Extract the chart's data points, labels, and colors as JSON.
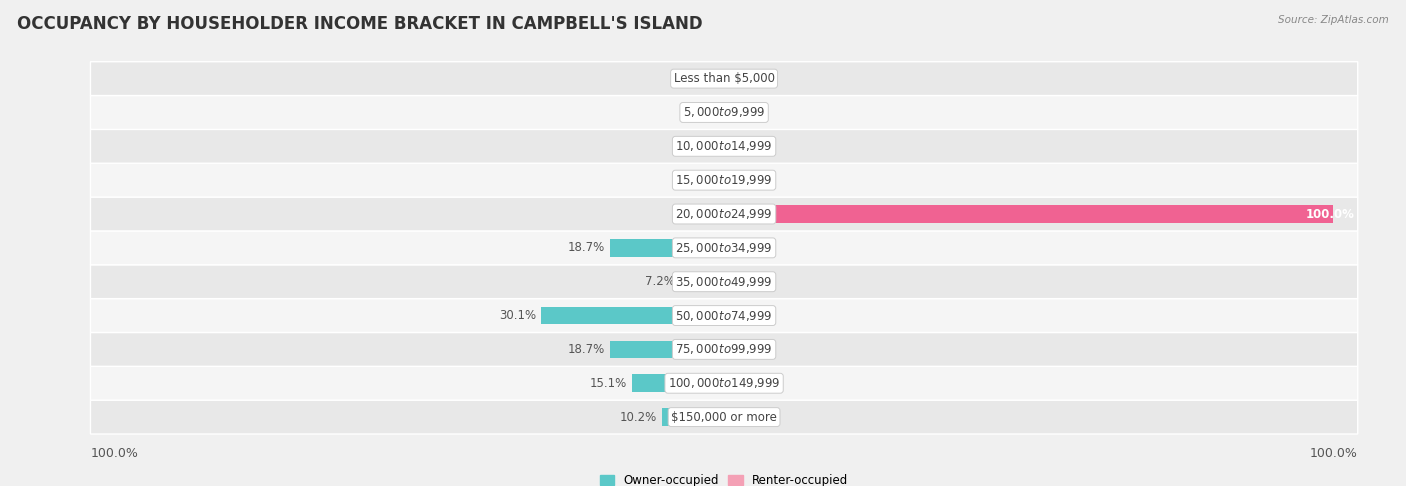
{
  "title": "OCCUPANCY BY HOUSEHOLDER INCOME BRACKET IN CAMPBELL'S ISLAND",
  "source": "Source: ZipAtlas.com",
  "categories": [
    "Less than $5,000",
    "$5,000 to $9,999",
    "$10,000 to $14,999",
    "$15,000 to $19,999",
    "$20,000 to $24,999",
    "$25,000 to $34,999",
    "$35,000 to $49,999",
    "$50,000 to $74,999",
    "$75,000 to $99,999",
    "$100,000 to $149,999",
    "$150,000 or more"
  ],
  "owner_values": [
    0.0,
    0.0,
    0.0,
    0.0,
    0.0,
    18.7,
    7.2,
    30.1,
    18.7,
    15.1,
    10.2
  ],
  "renter_values": [
    0.0,
    0.0,
    0.0,
    0.0,
    100.0,
    0.0,
    0.0,
    0.0,
    0.0,
    0.0,
    0.0
  ],
  "owner_color": "#5BC8C8",
  "renter_color": "#F4A0B5",
  "bg_color": "#f0f0f0",
  "row_color_light": "#f5f5f5",
  "row_color_dark": "#e8e8e8",
  "title_fontsize": 12,
  "label_fontsize": 8.5,
  "tick_fontsize": 9,
  "legend_owner": "Owner-occupied",
  "legend_renter": "Renter-occupied",
  "xlim": 100,
  "renter_bar_color_100": "#F06292"
}
